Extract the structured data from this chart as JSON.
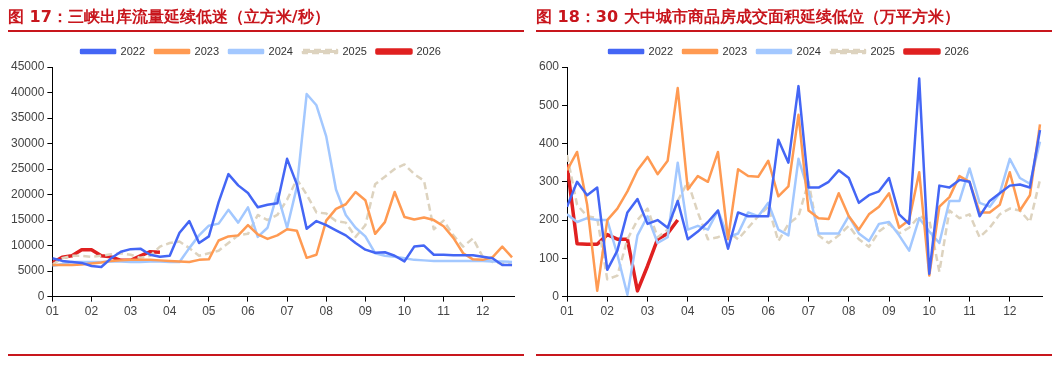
{
  "chart_data": [
    {
      "type": "line",
      "title": "图 17：三峡出库流量延续低迷（立方米/秒）",
      "x": [
        1,
        1.25,
        1.5,
        1.75,
        2,
        2.25,
        2.5,
        2.75,
        3,
        3.25,
        3.5,
        3.75,
        4,
        4.25,
        4.5,
        4.75,
        5,
        5.25,
        5.5,
        5.75,
        6,
        6.25,
        6.5,
        6.75,
        7,
        7.25,
        7.5,
        7.75,
        8,
        8.25,
        8.5,
        8.75,
        9,
        9.25,
        9.5,
        9.75,
        10,
        10.25,
        10.5,
        10.75,
        11,
        11.25,
        11.5,
        11.75,
        12,
        12.25,
        12.5,
        12.75
      ],
      "xlim": [
        1,
        12.8
      ],
      "xticks": [
        {
          "value": 1,
          "label": "01"
        },
        {
          "value": 2,
          "label": "02"
        },
        {
          "value": 3,
          "label": "03"
        },
        {
          "value": 4,
          "label": "04"
        },
        {
          "value": 5,
          "label": "05"
        },
        {
          "value": 6,
          "label": "06"
        },
        {
          "value": 7,
          "label": "07"
        },
        {
          "value": 8,
          "label": "08"
        },
        {
          "value": 9,
          "label": "09"
        },
        {
          "value": 10,
          "label": "10"
        },
        {
          "value": 11,
          "label": "11"
        },
        {
          "value": 12,
          "label": "12"
        }
      ],
      "ylim": [
        0,
        45000
      ],
      "yticks": [
        0,
        5000,
        10000,
        15000,
        20000,
        25000,
        30000,
        35000,
        40000,
        45000
      ],
      "grid": false,
      "legend": "top",
      "marker": "none",
      "series": [
        {
          "name": "2022",
          "color": "#4466f5",
          "values": [
            7500,
            7000,
            6800,
            6600,
            6000,
            5800,
            7500,
            8800,
            9300,
            9400,
            8200,
            7800,
            8000,
            12500,
            14800,
            10500,
            11800,
            18500,
            24000,
            21800,
            20300,
            17500,
            18000,
            18300,
            27000,
            22000,
            13300,
            14800,
            14000,
            13000,
            12000,
            10500,
            9200,
            8600,
            8700,
            8000,
            6900,
            9800,
            10000,
            8200,
            8200,
            8100,
            8100,
            8100,
            7800,
            7500,
            6200,
            6200
          ]
        },
        {
          "name": "2023",
          "color": "#ff9a52",
          "values": [
            6200,
            6200,
            6200,
            6300,
            6500,
            6700,
            7000,
            7100,
            7200,
            7200,
            7200,
            7100,
            7000,
            6900,
            6800,
            7200,
            7300,
            11000,
            11800,
            12000,
            14000,
            12200,
            11300,
            12000,
            13200,
            12900,
            7600,
            8200,
            14900,
            17200,
            18100,
            20500,
            18900,
            12300,
            14600,
            20500,
            15600,
            15100,
            15500,
            15000,
            13800,
            11500,
            8500,
            7300,
            7200,
            7700,
            9800,
            7700
          ]
        },
        {
          "name": "2024",
          "color": "#a3c8ff",
          "values": [
            6000,
            6400,
            6800,
            6800,
            6800,
            6800,
            6900,
            6900,
            6800,
            6800,
            6900,
            6900,
            6800,
            6800,
            9500,
            12000,
            13900,
            14300,
            17000,
            14500,
            17500,
            11700,
            13500,
            20200,
            13500,
            21500,
            39700,
            37500,
            31400,
            21000,
            16000,
            13500,
            11800,
            8500,
            8000,
            7800,
            7500,
            7200,
            7100,
            7000,
            7000,
            7000,
            7000,
            7000,
            7000,
            6900,
            6900,
            6800
          ]
        },
        {
          "name": "2025",
          "color": "#ddd3bf",
          "line_style": "dashed",
          "values": [
            6300,
            7500,
            8000,
            8000,
            7800,
            8000,
            8300,
            8500,
            8200,
            7600,
            8000,
            9800,
            10500,
            10800,
            9500,
            8000,
            8500,
            9000,
            10500,
            12000,
            12300,
            16000,
            15000,
            16000,
            19000,
            23000,
            20000,
            16500,
            16300,
            14800,
            14500,
            11700,
            14000,
            22000,
            23500,
            25000,
            25900,
            24000,
            22700,
            13200,
            14900,
            12000,
            9800,
            11400,
            7800,
            6800,
            6500,
            6200
          ]
        },
        {
          "name": "2026",
          "color": "#e02020",
          "values": [
            6600,
            7700,
            8000,
            9200,
            9200,
            8000,
            7800,
            7100,
            7100,
            8000,
            8800,
            8700,
            null,
            null,
            null,
            null,
            null,
            null,
            null,
            null,
            null,
            null,
            null,
            null,
            null,
            null,
            null,
            null,
            null,
            null,
            null,
            null,
            null,
            null,
            null,
            null,
            null,
            null,
            null,
            null,
            null,
            null,
            null,
            null,
            null,
            null,
            null,
            null
          ]
        }
      ]
    },
    {
      "type": "line",
      "title": "图 18：30 大中城市商品房成交面积延续低位（万平方米）",
      "x": [
        1,
        1.25,
        1.5,
        1.75,
        2,
        2.25,
        2.5,
        2.75,
        3,
        3.25,
        3.5,
        3.75,
        4,
        4.25,
        4.5,
        4.75,
        5,
        5.25,
        5.5,
        5.75,
        6,
        6.25,
        6.5,
        6.75,
        7,
        7.25,
        7.5,
        7.75,
        8,
        8.25,
        8.5,
        8.75,
        9,
        9.25,
        9.5,
        9.75,
        10,
        10.25,
        10.5,
        10.75,
        11,
        11.25,
        11.5,
        11.75,
        12,
        12.25,
        12.5,
        12.75
      ],
      "xlim": [
        1,
        12.8
      ],
      "xticks": [
        {
          "value": 1,
          "label": "01"
        },
        {
          "value": 2,
          "label": "02"
        },
        {
          "value": 3,
          "label": "03"
        },
        {
          "value": 4,
          "label": "04"
        },
        {
          "value": 5,
          "label": "05"
        },
        {
          "value": 6,
          "label": "06"
        },
        {
          "value": 7,
          "label": "07"
        },
        {
          "value": 8,
          "label": "08"
        },
        {
          "value": 9,
          "label": "09"
        },
        {
          "value": 10,
          "label": "10"
        },
        {
          "value": 11,
          "label": "11"
        },
        {
          "value": 12,
          "label": "12"
        }
      ],
      "ylim": [
        0,
        600
      ],
      "yticks": [
        0,
        100,
        200,
        300,
        400,
        500,
        600
      ],
      "grid": false,
      "legend": "top",
      "marker": "none",
      "series": [
        {
          "name": "2022",
          "color": "#4466f5",
          "values": [
            235,
            300,
            265,
            285,
            70,
            120,
            220,
            255,
            190,
            200,
            180,
            250,
            150,
            170,
            195,
            225,
            125,
            220,
            210,
            210,
            210,
            410,
            350,
            550,
            285,
            285,
            300,
            330,
            310,
            245,
            265,
            275,
            310,
            215,
            190,
            570,
            60,
            290,
            285,
            305,
            300,
            210,
            250,
            270,
            290,
            293,
            285,
            435
          ]
        },
        {
          "name": "2023",
          "color": "#ff9a52",
          "values": [
            330,
            378,
            240,
            15,
            200,
            230,
            275,
            330,
            365,
            320,
            355,
            545,
            280,
            315,
            300,
            378,
            150,
            333,
            315,
            313,
            355,
            262,
            288,
            475,
            225,
            205,
            203,
            270,
            210,
            175,
            215,
            235,
            270,
            180,
            200,
            325,
            55,
            235,
            260,
            315,
            300,
            220,
            220,
            240,
            325,
            225,
            265,
            450
          ]
        },
        {
          "name": "2024",
          "color": "#a3c8ff",
          "values": [
            215,
            195,
            205,
            200,
            200,
            110,
            5,
            160,
            210,
            140,
            155,
            350,
            175,
            185,
            175,
            225,
            155,
            165,
            220,
            210,
            245,
            175,
            160,
            360,
            275,
            165,
            165,
            165,
            210,
            165,
            145,
            190,
            195,
            160,
            120,
            205,
            170,
            140,
            250,
            250,
            335,
            245,
            235,
            270,
            360,
            310,
            295,
            405
          ]
        },
        {
          "name": "2025",
          "color": "#ddd3bf",
          "line_style": "dashed",
          "values": [
            370,
            240,
            210,
            205,
            45,
            55,
            150,
            200,
            230,
            155,
            175,
            250,
            300,
            220,
            150,
            155,
            170,
            150,
            180,
            210,
            235,
            145,
            190,
            210,
            300,
            160,
            140,
            160,
            185,
            150,
            130,
            170,
            190,
            165,
            180,
            210,
            200,
            65,
            225,
            205,
            215,
            155,
            180,
            215,
            230,
            225,
            195,
            305
          ]
        },
        {
          "name": "2026",
          "color": "#e02020",
          "values": [
            345,
            138,
            137,
            137,
            162,
            150,
            150,
            15,
            80,
            150,
            165,
            200,
            null,
            null,
            null,
            null,
            null,
            null,
            null,
            null,
            null,
            null,
            null,
            null,
            null,
            null,
            null,
            null,
            null,
            null,
            null,
            null,
            null,
            null,
            null,
            null,
            null,
            null,
            null,
            null,
            null,
            null,
            null,
            null,
            null,
            null,
            null,
            null
          ]
        }
      ]
    }
  ]
}
